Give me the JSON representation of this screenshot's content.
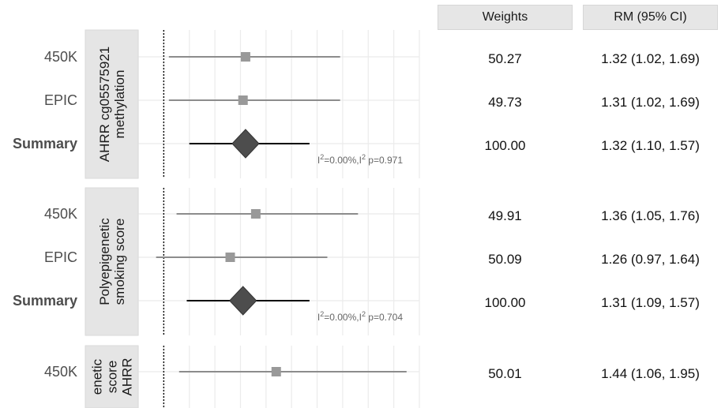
{
  "headers": {
    "weights": "Weights",
    "rm": "RM (95% CI)"
  },
  "colors": {
    "ci_line": "#8c8c8c",
    "point": "#999999",
    "summary": "#4d4d4d",
    "strip_bg": "#e5e5e5",
    "grid": "#ebebeb"
  },
  "chart_data": {
    "type": "forest",
    "xlim": [
      0.9,
      2.0
    ],
    "reference_line": 1.0,
    "facets": [
      {
        "strip_lines": [
          "AHRR cg05575921",
          "methylation"
        ],
        "het_sup": "2",
        "het_a": "=0.00%,I",
        "het_b": " p=0.971",
        "rows": [
          {
            "label": "450K",
            "bold": false,
            "estimate": 1.32,
            "lower": 1.02,
            "upper": 1.69,
            "weight": "50.27",
            "rm": "1.32 (1.02, 1.69)"
          },
          {
            "label": "EPIC",
            "bold": false,
            "estimate": 1.31,
            "lower": 1.02,
            "upper": 1.69,
            "weight": "49.73",
            "rm": "1.31 (1.02, 1.69)"
          },
          {
            "label": "Summary",
            "bold": true,
            "estimate": 1.32,
            "lower": 1.1,
            "upper": 1.57,
            "weight": "100.00",
            "rm": "1.32 (1.10, 1.57)"
          }
        ]
      },
      {
        "strip_lines": [
          "Polyepigenetic",
          "smoking score"
        ],
        "het_sup": "2",
        "het_a": "=0.00%,I",
        "het_b": " p=0.704",
        "rows": [
          {
            "label": "450K",
            "bold": false,
            "estimate": 1.36,
            "lower": 1.05,
            "upper": 1.76,
            "weight": "49.91",
            "rm": "1.36 (1.05, 1.76)"
          },
          {
            "label": "EPIC",
            "bold": false,
            "estimate": 1.26,
            "lower": 0.97,
            "upper": 1.64,
            "weight": "50.09",
            "rm": "1.26 (0.97, 1.64)"
          },
          {
            "label": "Summary",
            "bold": true,
            "estimate": 1.31,
            "lower": 1.09,
            "upper": 1.57,
            "weight": "100.00",
            "rm": "1.31 (1.09, 1.57)"
          }
        ]
      },
      {
        "strip_lines": [
          "enetic",
          "score",
          "AHRR"
        ],
        "rows": [
          {
            "label": "450K",
            "bold": false,
            "estimate": 1.44,
            "lower": 1.06,
            "upper": 1.95,
            "weight": "50.01",
            "rm": "1.44 (1.06, 1.95)"
          }
        ]
      }
    ]
  }
}
